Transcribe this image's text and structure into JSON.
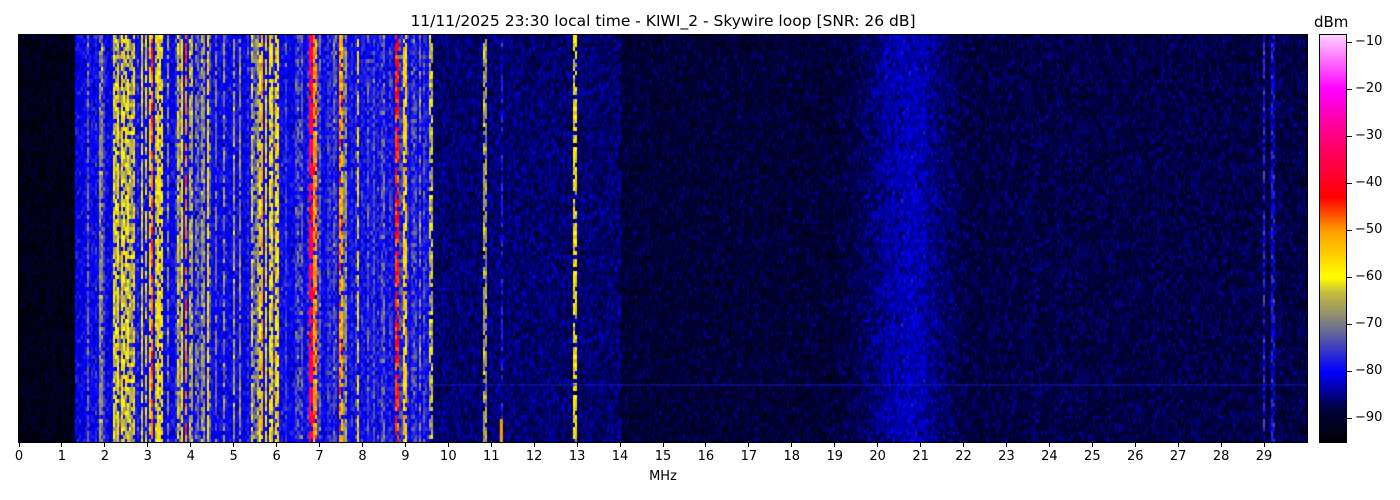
{
  "chart_data": {
    "type": "heatmap",
    "title": "11/11/2025 23:30 local time - KIWI_2 - Skywire loop [SNR: 26 dB]",
    "xlabel": "MHz",
    "ylabel": "",
    "xlim": [
      0,
      30
    ],
    "x_ticks": [
      "0",
      "1",
      "2",
      "3",
      "4",
      "5",
      "6",
      "7",
      "8",
      "9",
      "10",
      "11",
      "12",
      "13",
      "14",
      "15",
      "16",
      "17",
      "18",
      "19",
      "20",
      "21",
      "22",
      "23",
      "24",
      "25",
      "26",
      "27",
      "28",
      "29"
    ],
    "colorbar": {
      "label": "dBm",
      "range": [
        -95,
        -8.5
      ],
      "ticks": [
        "-10",
        "-20",
        "-30",
        "-40",
        "-50",
        "-60",
        "-70",
        "-80",
        "-90"
      ],
      "colormap": [
        {
          "dbm": -95,
          "color": "#000000"
        },
        {
          "dbm": -88,
          "color": "#00003c"
        },
        {
          "dbm": -80,
          "color": "#0000ff"
        },
        {
          "dbm": -70,
          "color": "#7a7a88"
        },
        {
          "dbm": -63,
          "color": "#c8c03c"
        },
        {
          "dbm": -60,
          "color": "#ffff00"
        },
        {
          "dbm": -50,
          "color": "#ffa000"
        },
        {
          "dbm": -43,
          "color": "#ff0000"
        },
        {
          "dbm": -30,
          "color": "#ff0080"
        },
        {
          "dbm": -20,
          "color": "#ff00ff"
        },
        {
          "dbm": -8.5,
          "color": "#ffd0ff"
        }
      ]
    },
    "noise_floor_dbm": [
      {
        "from_mhz": 0,
        "to_mhz": 1.3,
        "level": -92
      },
      {
        "from_mhz": 1.3,
        "to_mhz": 9.6,
        "level": -80
      },
      {
        "from_mhz": 9.6,
        "to_mhz": 14,
        "level": -86
      },
      {
        "from_mhz": 14,
        "to_mhz": 19.3,
        "level": -89
      },
      {
        "from_mhz": 19.3,
        "to_mhz": 22,
        "level": -84
      },
      {
        "from_mhz": 22,
        "to_mhz": 30,
        "level": -88
      }
    ],
    "busy_bands": [
      {
        "from_mhz": 2.2,
        "to_mhz": 4.1,
        "level": -62
      },
      {
        "from_mhz": 4.1,
        "to_mhz": 5.5,
        "level": -70
      },
      {
        "from_mhz": 5.5,
        "to_mhz": 6.1,
        "level": -62
      },
      {
        "from_mhz": 6.1,
        "to_mhz": 7.7,
        "level": -72
      },
      {
        "from_mhz": 7.7,
        "to_mhz": 9.5,
        "level": -78
      }
    ],
    "carriers": [
      {
        "mhz": 1.9,
        "level": -68
      },
      {
        "mhz": 2.3,
        "level": -58
      },
      {
        "mhz": 3.1,
        "level": -47
      },
      {
        "mhz": 3.9,
        "level": -48
      },
      {
        "mhz": 4.4,
        "level": -58
      },
      {
        "mhz": 5.65,
        "level": -52
      },
      {
        "mhz": 6.8,
        "level": -33
      },
      {
        "mhz": 6.9,
        "level": -50
      },
      {
        "mhz": 7.5,
        "level": -50
      },
      {
        "mhz": 7.9,
        "level": -60
      },
      {
        "mhz": 8.5,
        "level": -72
      },
      {
        "mhz": 8.8,
        "level": -44
      },
      {
        "mhz": 9.0,
        "level": -56
      },
      {
        "mhz": 9.6,
        "level": -64
      },
      {
        "mhz": 10.85,
        "level": -66
      },
      {
        "mhz": 11.25,
        "level": -78
      },
      {
        "mhz": 12.95,
        "level": -60
      },
      {
        "mhz": 29.0,
        "level": -78
      },
      {
        "mhz": 29.2,
        "level": -80
      }
    ]
  }
}
